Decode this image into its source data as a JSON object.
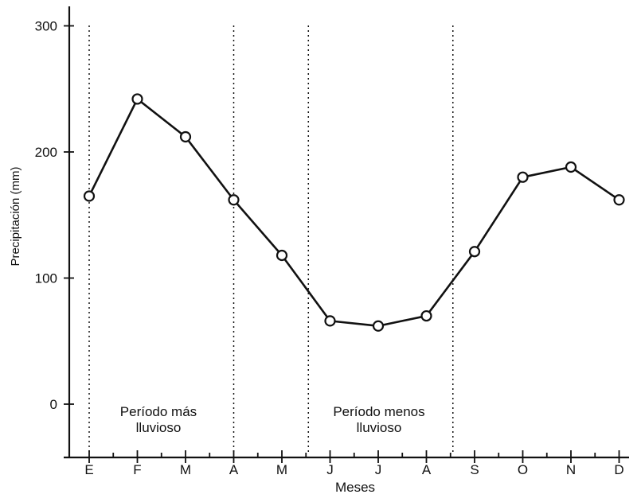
{
  "chart_data": {
    "type": "line",
    "xlabel": "Meses",
    "ylabel": "Precipitación (mm)",
    "categories": [
      "E",
      "F",
      "M",
      "A",
      "M",
      "J",
      "J",
      "A",
      "S",
      "O",
      "N",
      "D"
    ],
    "series": [
      {
        "values": [
          165,
          242,
          212,
          162,
          118,
          66,
          62,
          70,
          121,
          180,
          188,
          162
        ]
      }
    ],
    "ylim": [
      -40,
      310
    ],
    "yticks": [
      0,
      100,
      200,
      300
    ],
    "grid": false,
    "annotations": [
      {
        "lines": [
          "Período más",
          "lluvioso"
        ]
      },
      {
        "lines": [
          "Período menos",
          "lluvioso"
        ]
      }
    ],
    "divider_positions_months": [
      0,
      3,
      4.55,
      7.55
    ],
    "colors": {
      "line": "#111111",
      "marker_fill": "#ffffff"
    }
  }
}
